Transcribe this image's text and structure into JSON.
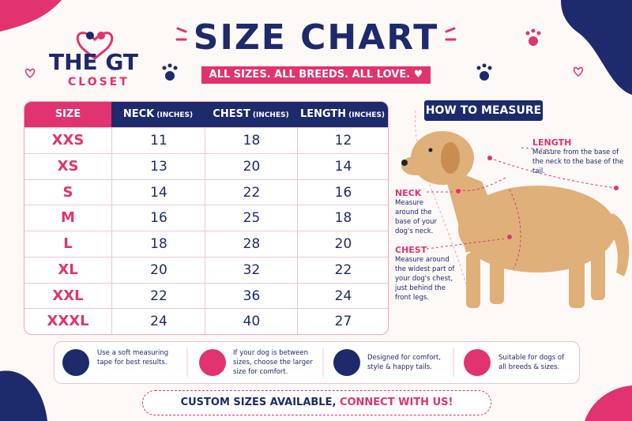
{
  "logo": {
    "line1": "THE",
    "line2": "GT",
    "line3": "CLOSET"
  },
  "header": {
    "title": "SIZE CHART",
    "subtitle": "ALL SIZES. ALL BREEDS. ALL LOVE."
  },
  "table": {
    "columns": [
      {
        "label": "SIZE"
      },
      {
        "label": "NECK",
        "unit": "(INCHES)"
      },
      {
        "label": "CHEST",
        "unit": "(INCHES)"
      },
      {
        "label": "LENGTH",
        "unit": "(INCHES)"
      }
    ],
    "rows": [
      [
        "XXS",
        11,
        18,
        12
      ],
      [
        "XS",
        13,
        20,
        14
      ],
      [
        "S",
        14,
        22,
        16
      ],
      [
        "M",
        16,
        25,
        18
      ],
      [
        "L",
        18,
        28,
        20
      ],
      [
        "XL",
        20,
        32,
        22
      ],
      [
        "XXL",
        22,
        36,
        24
      ],
      [
        "XXXL",
        24,
        40,
        27
      ]
    ]
  },
  "measure": {
    "title": "HOW TO MEASURE",
    "items": [
      {
        "label": "LENGTH",
        "text": "Measure from the base of the neck to the base of the tail."
      },
      {
        "label": "NECK",
        "text": "Measure around the base of your dog's neck."
      },
      {
        "label": "CHEST",
        "text": "Measure around the widest part of your dog's chest, just behind the front legs."
      }
    ]
  },
  "tips": [
    "Use a soft measuring tape for best results.",
    "If your dog is between sizes, choose the larger size for comfort.",
    "Designed for comfort, style & happy tails.",
    "Suitable for dogs of all breeds & sizes."
  ],
  "footer": {
    "text": "CUSTOM SIZES AVAILABLE,",
    "link": "CONNECT WITH US!"
  }
}
